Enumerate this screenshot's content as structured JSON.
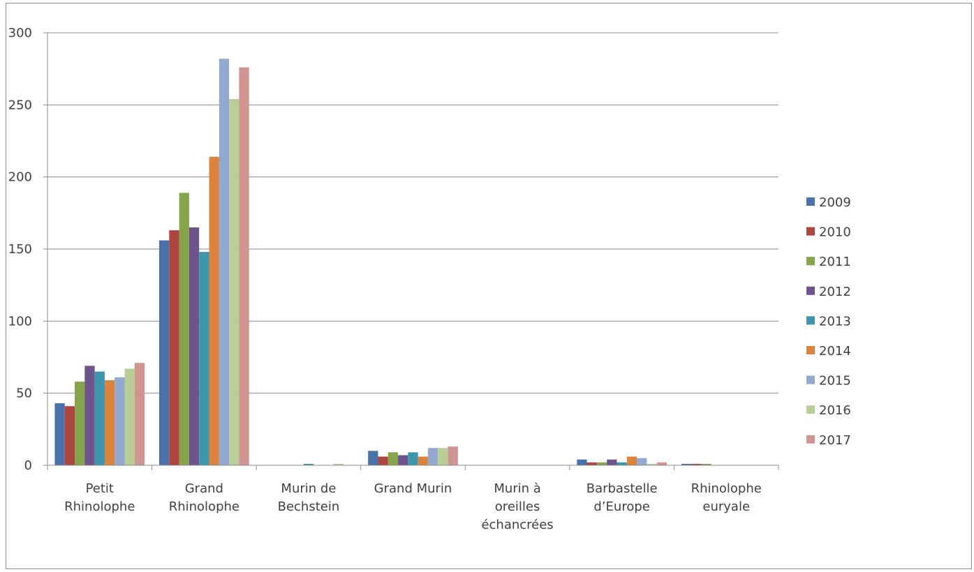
{
  "chart_data": {
    "type": "bar",
    "categories": [
      [
        "Petit",
        "Rhinolophe"
      ],
      [
        "Grand",
        "Rhinolophe"
      ],
      [
        "Murin de",
        "Bechstein"
      ],
      [
        "Grand Murin"
      ],
      [
        "Murin à",
        "oreilles",
        "échancrées"
      ],
      [
        "Barbastelle",
        "d’Europe"
      ],
      [
        "Rhinolophe",
        "euryale"
      ]
    ],
    "series": [
      {
        "name": "2009",
        "color": "#4a72a8",
        "values": [
          43,
          156,
          0,
          10,
          0,
          4,
          1
        ]
      },
      {
        "name": "2010",
        "color": "#ae4541",
        "values": [
          41,
          163,
          0,
          6,
          0,
          2,
          1
        ]
      },
      {
        "name": "2011",
        "color": "#86a44a",
        "values": [
          58,
          189,
          0,
          9,
          0,
          2,
          1
        ]
      },
      {
        "name": "2012",
        "color": "#6e548d",
        "values": [
          69,
          165,
          0,
          7,
          0,
          4,
          0
        ]
      },
      {
        "name": "2013",
        "color": "#3d96ae",
        "values": [
          65,
          148,
          1,
          9,
          0,
          2,
          0
        ]
      },
      {
        "name": "2014",
        "color": "#db843d",
        "values": [
          59,
          214,
          0,
          6,
          0,
          6,
          0
        ]
      },
      {
        "name": "2015",
        "color": "#93a9cf",
        "values": [
          61,
          282,
          0,
          12,
          0,
          5,
          0
        ]
      },
      {
        "name": "2016",
        "color": "#b9cd96",
        "values": [
          67,
          254,
          1,
          12,
          0,
          1,
          0
        ]
      },
      {
        "name": "2017",
        "color": "#d09493",
        "values": [
          71,
          276,
          0,
          13,
          0,
          2,
          0
        ]
      }
    ],
    "yticks": [
      "0",
      "50",
      "100",
      "150",
      "200",
      "250",
      "300"
    ],
    "ylim": [
      0,
      300
    ],
    "grid": true,
    "legend": "right"
  }
}
